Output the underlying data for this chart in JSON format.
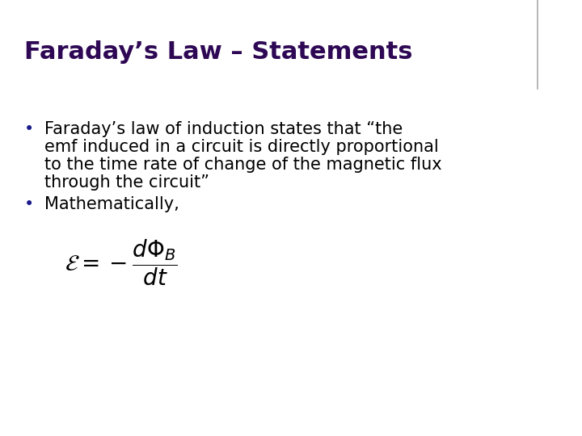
{
  "title": "Faraday’s Law – Statements",
  "title_color": "#2E0854",
  "title_fontsize": 22,
  "title_bold": true,
  "bullet1_line1": "Faraday’s law of induction states that “the",
  "bullet1_line2": "emf induced in a circuit is directly proportional",
  "bullet1_line3": "to the time rate of change of the magnetic flux",
  "bullet1_line4": "through the circuit”",
  "bullet2": "Mathematically,",
  "formula": "$\\mathcal{E} = -\\dfrac{d\\Phi_B}{dt}$",
  "text_color": "#000000",
  "body_fontsize": 15,
  "formula_fontsize": 20,
  "background_color": "#ffffff",
  "title_line_color": "#aaaaaa",
  "bullet_color": "#1a1a8c"
}
